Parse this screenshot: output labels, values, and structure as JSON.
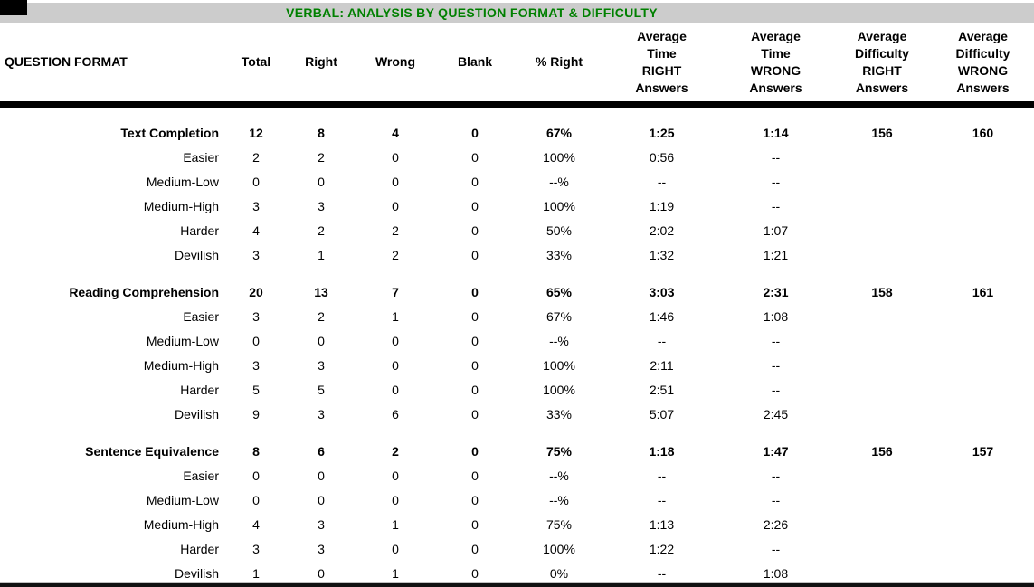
{
  "title": "VERBAL: ANALYSIS BY QUESTION FORMAT & DIFFICULTY",
  "colors": {
    "title_green": "#008000",
    "bar_gray": "#cccccc",
    "rule_black": "#000000"
  },
  "table": {
    "first_col_header": "QUESTION FORMAT",
    "columns": [
      "Total",
      "Right",
      "Wrong",
      "Blank",
      "% Right",
      "Average\nTime\nRIGHT\nAnswers",
      "Average\nTime\nWRONG\nAnswers",
      "Average\nDifficulty\nRIGHT\nAnswers",
      "Average\nDifficulty\nWRONG\nAnswers"
    ],
    "sections": [
      {
        "summary": {
          "label": "Text Completion",
          "values": [
            "12",
            "8",
            "4",
            "0",
            "67%",
            "1:25",
            "1:14",
            "156",
            "160"
          ]
        },
        "rows": [
          {
            "label": "Easier",
            "values": [
              "2",
              "2",
              "0",
              "0",
              "100%",
              "0:56",
              "--"
            ]
          },
          {
            "label": "Medium-Low",
            "values": [
              "0",
              "0",
              "0",
              "0",
              "--%",
              "--",
              "--"
            ]
          },
          {
            "label": "Medium-High",
            "values": [
              "3",
              "3",
              "0",
              "0",
              "100%",
              "1:19",
              "--"
            ]
          },
          {
            "label": "Harder",
            "values": [
              "4",
              "2",
              "2",
              "0",
              "50%",
              "2:02",
              "1:07"
            ]
          },
          {
            "label": "Devilish",
            "values": [
              "3",
              "1",
              "2",
              "0",
              "33%",
              "1:32",
              "1:21"
            ]
          }
        ]
      },
      {
        "summary": {
          "label": "Reading Comprehension",
          "values": [
            "20",
            "13",
            "7",
            "0",
            "65%",
            "3:03",
            "2:31",
            "158",
            "161"
          ]
        },
        "rows": [
          {
            "label": "Easier",
            "values": [
              "3",
              "2",
              "1",
              "0",
              "67%",
              "1:46",
              "1:08"
            ]
          },
          {
            "label": "Medium-Low",
            "values": [
              "0",
              "0",
              "0",
              "0",
              "--%",
              "--",
              "--"
            ]
          },
          {
            "label": "Medium-High",
            "values": [
              "3",
              "3",
              "0",
              "0",
              "100%",
              "2:11",
              "--"
            ]
          },
          {
            "label": "Harder",
            "values": [
              "5",
              "5",
              "0",
              "0",
              "100%",
              "2:51",
              "--"
            ]
          },
          {
            "label": "Devilish",
            "values": [
              "9",
              "3",
              "6",
              "0",
              "33%",
              "5:07",
              "2:45"
            ]
          }
        ]
      },
      {
        "summary": {
          "label": "Sentence Equivalence",
          "values": [
            "8",
            "6",
            "2",
            "0",
            "75%",
            "1:18",
            "1:47",
            "156",
            "157"
          ]
        },
        "rows": [
          {
            "label": "Easier",
            "values": [
              "0",
              "0",
              "0",
              "0",
              "--%",
              "--",
              "--"
            ]
          },
          {
            "label": "Medium-Low",
            "values": [
              "0",
              "0",
              "0",
              "0",
              "--%",
              "--",
              "--"
            ]
          },
          {
            "label": "Medium-High",
            "values": [
              "4",
              "3",
              "1",
              "0",
              "75%",
              "1:13",
              "2:26"
            ]
          },
          {
            "label": "Harder",
            "values": [
              "3",
              "3",
              "0",
              "0",
              "100%",
              "1:22",
              "--"
            ]
          },
          {
            "label": "Devilish",
            "values": [
              "1",
              "0",
              "1",
              "0",
              "0%",
              "--",
              "1:08"
            ]
          }
        ]
      }
    ]
  }
}
